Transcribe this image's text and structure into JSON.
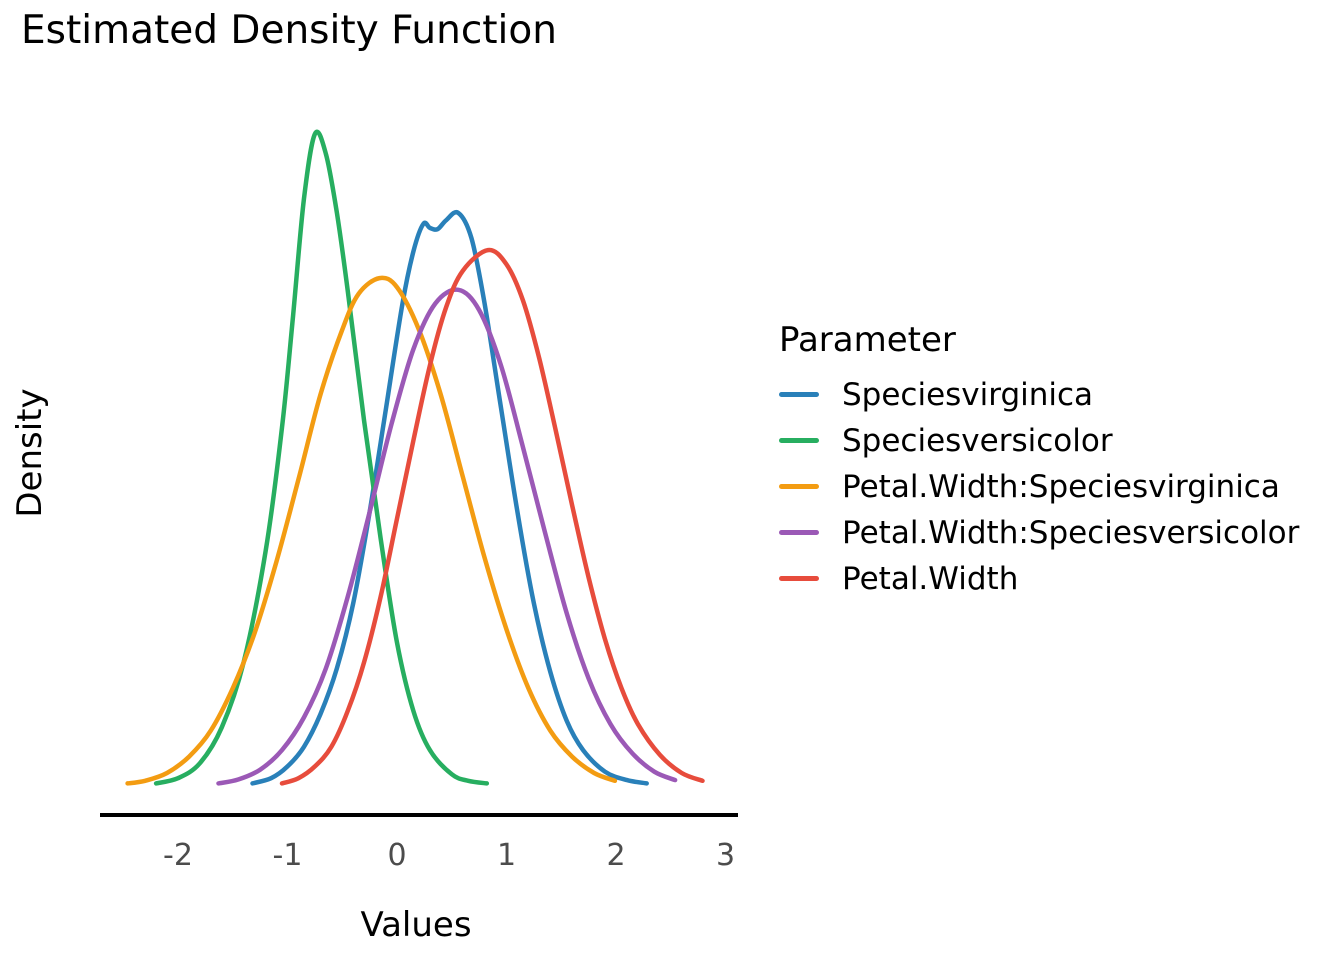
{
  "title": "Estimated Density Function",
  "axis": {
    "xlabel": "Values",
    "ylabel": "Density",
    "x_ticks": [
      {
        "label": "-2",
        "value": -2
      },
      {
        "label": "-1",
        "value": -1
      },
      {
        "label": "0",
        "value": 0
      },
      {
        "label": "1",
        "value": 1
      },
      {
        "label": "2",
        "value": 2
      },
      {
        "label": "3",
        "value": 3
      }
    ]
  },
  "legend": {
    "title": "Parameter",
    "items": [
      {
        "label": "Speciesvirginica",
        "color": "#2980b9"
      },
      {
        "label": "Speciesversicolor",
        "color": "#27ae60"
      },
      {
        "label": "Petal.Width:Speciesvirginica",
        "color": "#f39c12"
      },
      {
        "label": "Petal.Width:Speciesversicolor",
        "color": "#9b59b6"
      },
      {
        "label": "Petal.Width",
        "color": "#e74c3c"
      }
    ]
  },
  "chart_data": {
    "type": "line",
    "subtype": "kernel-density",
    "title": "Estimated Density Function",
    "xlabel": "Values",
    "ylabel": "Density",
    "xlim": [
      -2.7,
      3.1
    ],
    "ylim": [
      0,
      1.05
    ],
    "y_units": "density, normalized so the tallest curve (Speciesversicolor) peaks at 1.0",
    "grid": false,
    "legend_title": "Parameter",
    "legend_position": "right",
    "draw_order_note": "series drawn in listed order, last on top",
    "series": [
      {
        "name": "Speciesvirginica",
        "color": "#2980b9",
        "peak_x": 0.56,
        "points": [
          [
            -1.32,
            0.004
          ],
          [
            -1.15,
            0.012
          ],
          [
            -1.0,
            0.03
          ],
          [
            -0.85,
            0.06
          ],
          [
            -0.7,
            0.11
          ],
          [
            -0.55,
            0.18
          ],
          [
            -0.4,
            0.28
          ],
          [
            -0.25,
            0.42
          ],
          [
            -0.1,
            0.58
          ],
          [
            0.05,
            0.74
          ],
          [
            0.15,
            0.82
          ],
          [
            0.24,
            0.862
          ],
          [
            0.3,
            0.856
          ],
          [
            0.37,
            0.854
          ],
          [
            0.45,
            0.868
          ],
          [
            0.56,
            0.879
          ],
          [
            0.68,
            0.84
          ],
          [
            0.8,
            0.74
          ],
          [
            0.95,
            0.58
          ],
          [
            1.1,
            0.42
          ],
          [
            1.25,
            0.28
          ],
          [
            1.4,
            0.175
          ],
          [
            1.55,
            0.1
          ],
          [
            1.7,
            0.055
          ],
          [
            1.9,
            0.022
          ],
          [
            2.1,
            0.009
          ],
          [
            2.28,
            0.004
          ]
        ]
      },
      {
        "name": "Speciesversicolor",
        "color": "#27ae60",
        "peak_x": -0.75,
        "points": [
          [
            -2.2,
            0.004
          ],
          [
            -2.0,
            0.012
          ],
          [
            -1.8,
            0.035
          ],
          [
            -1.6,
            0.09
          ],
          [
            -1.4,
            0.19
          ],
          [
            -1.2,
            0.36
          ],
          [
            -1.05,
            0.55
          ],
          [
            -0.95,
            0.72
          ],
          [
            -0.85,
            0.9
          ],
          [
            -0.75,
            1.0
          ],
          [
            -0.65,
            0.97
          ],
          [
            -0.55,
            0.88
          ],
          [
            -0.45,
            0.76
          ],
          [
            -0.3,
            0.56
          ],
          [
            -0.15,
            0.38
          ],
          [
            0.0,
            0.22
          ],
          [
            0.15,
            0.115
          ],
          [
            0.3,
            0.055
          ],
          [
            0.5,
            0.018
          ],
          [
            0.65,
            0.008
          ],
          [
            0.82,
            0.004
          ]
        ]
      },
      {
        "name": "Petal.Width:Speciesvirginica",
        "color": "#f39c12",
        "peak_x": -0.16,
        "points": [
          [
            -2.46,
            0.004
          ],
          [
            -2.3,
            0.008
          ],
          [
            -2.1,
            0.02
          ],
          [
            -1.9,
            0.045
          ],
          [
            -1.7,
            0.085
          ],
          [
            -1.5,
            0.15
          ],
          [
            -1.3,
            0.235
          ],
          [
            -1.1,
            0.345
          ],
          [
            -0.9,
            0.47
          ],
          [
            -0.7,
            0.6
          ],
          [
            -0.5,
            0.7
          ],
          [
            -0.35,
            0.755
          ],
          [
            -0.16,
            0.779
          ],
          [
            0.0,
            0.765
          ],
          [
            0.2,
            0.7
          ],
          [
            0.4,
            0.6
          ],
          [
            0.6,
            0.475
          ],
          [
            0.8,
            0.35
          ],
          [
            1.0,
            0.24
          ],
          [
            1.2,
            0.15
          ],
          [
            1.4,
            0.085
          ],
          [
            1.6,
            0.045
          ],
          [
            1.8,
            0.02
          ],
          [
            1.99,
            0.008
          ]
        ]
      },
      {
        "name": "Petal.Width:Speciesversicolor",
        "color": "#9b59b6",
        "peak_x": 0.56,
        "points": [
          [
            -1.63,
            0.004
          ],
          [
            -1.45,
            0.01
          ],
          [
            -1.25,
            0.025
          ],
          [
            -1.05,
            0.055
          ],
          [
            -0.85,
            0.105
          ],
          [
            -0.65,
            0.18
          ],
          [
            -0.45,
            0.29
          ],
          [
            -0.25,
            0.42
          ],
          [
            -0.05,
            0.555
          ],
          [
            0.15,
            0.67
          ],
          [
            0.35,
            0.74
          ],
          [
            0.56,
            0.761
          ],
          [
            0.75,
            0.73
          ],
          [
            0.95,
            0.645
          ],
          [
            1.15,
            0.52
          ],
          [
            1.35,
            0.39
          ],
          [
            1.55,
            0.265
          ],
          [
            1.75,
            0.165
          ],
          [
            1.95,
            0.095
          ],
          [
            2.15,
            0.05
          ],
          [
            2.35,
            0.022
          ],
          [
            2.54,
            0.009
          ]
        ]
      },
      {
        "name": "Petal.Width",
        "color": "#e74c3c",
        "peak_x": 0.83,
        "points": [
          [
            -1.05,
            0.004
          ],
          [
            -0.9,
            0.012
          ],
          [
            -0.75,
            0.03
          ],
          [
            -0.6,
            0.06
          ],
          [
            -0.45,
            0.115
          ],
          [
            -0.3,
            0.19
          ],
          [
            -0.15,
            0.29
          ],
          [
            0.0,
            0.41
          ],
          [
            0.15,
            0.53
          ],
          [
            0.3,
            0.645
          ],
          [
            0.45,
            0.735
          ],
          [
            0.6,
            0.79
          ],
          [
            0.83,
            0.822
          ],
          [
            1.0,
            0.8
          ],
          [
            1.15,
            0.745
          ],
          [
            1.3,
            0.655
          ],
          [
            1.45,
            0.545
          ],
          [
            1.6,
            0.43
          ],
          [
            1.75,
            0.32
          ],
          [
            1.9,
            0.225
          ],
          [
            2.05,
            0.15
          ],
          [
            2.2,
            0.095
          ],
          [
            2.4,
            0.048
          ],
          [
            2.6,
            0.02
          ],
          [
            2.79,
            0.008
          ]
        ]
      }
    ]
  }
}
